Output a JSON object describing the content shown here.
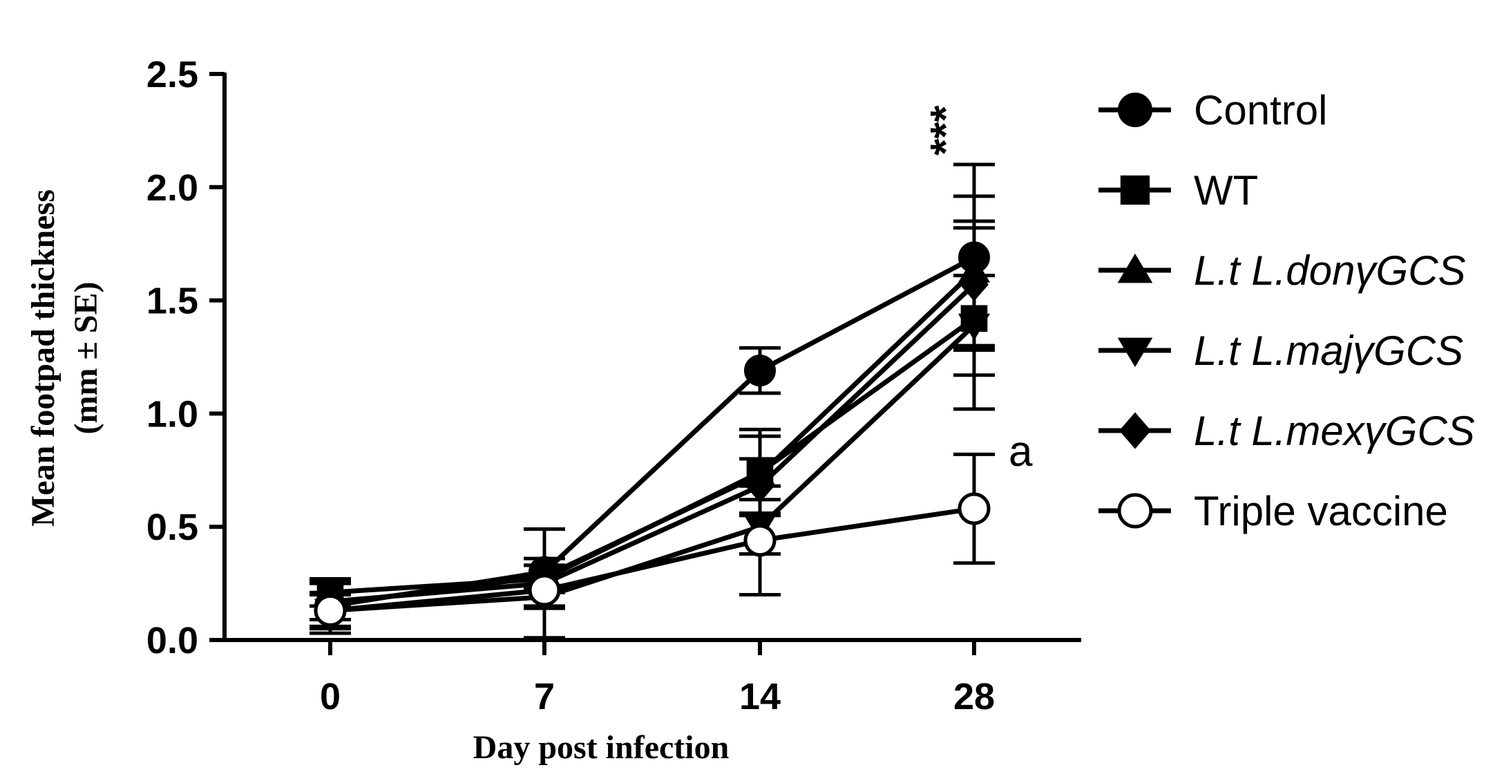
{
  "chart_data": {
    "type": "line",
    "xlabel": "Day post infection",
    "ylabel": "Mean footpad thickness",
    "ylabel_line2": "(mm ± SE)",
    "categories": [
      "0",
      "7",
      "14",
      "28"
    ],
    "ylim": [
      0,
      2.5
    ],
    "yticks": [
      "0.0",
      "0.5",
      "1.0",
      "1.5",
      "2.0",
      "2.5"
    ],
    "ytick_values": [
      0,
      0.5,
      1.0,
      1.5,
      2.0,
      2.5
    ],
    "grid": false,
    "legend_position": "right",
    "series": [
      {
        "name": "Control",
        "name_italic": false,
        "marker": "circle-filled",
        "values": [
          0.15,
          0.3,
          1.19,
          1.69
        ],
        "errors": [
          0.12,
          0.06,
          0.1,
          0.41
        ]
      },
      {
        "name": "WT",
        "name_italic": false,
        "marker": "square-filled",
        "values": [
          0.21,
          0.27,
          0.74,
          1.42
        ],
        "errors": [
          0.06,
          0.06,
          0.19,
          0.4
        ]
      },
      {
        "name": "L.t L.donγGCS",
        "name_italic": true,
        "marker": "triangle-up",
        "values": [
          0.16,
          0.28,
          0.73,
          1.63
        ],
        "errors": [
          0.1,
          0.05,
          0.17,
          0.33
        ]
      },
      {
        "name": "L.t L.majγGCS",
        "name_italic": true,
        "marker": "triangle-down",
        "values": [
          0.13,
          0.19,
          0.5,
          1.39
        ],
        "errors": [
          0.08,
          0.05,
          0.12,
          0.22
        ]
      },
      {
        "name": "L.t L.mexγGCS",
        "name_italic": true,
        "marker": "diamond",
        "values": [
          0.17,
          0.25,
          0.68,
          1.57
        ],
        "errors": [
          0.08,
          0.24,
          0.12,
          0.28
        ]
      },
      {
        "name": "Triple vaccine",
        "name_italic": false,
        "marker": "circle-open",
        "values": [
          0.13,
          0.22,
          0.44,
          0.58
        ],
        "errors": [
          0.07,
          0.07,
          0.24,
          0.24
        ]
      }
    ],
    "annotations": [
      {
        "text": "***",
        "x": "28",
        "y": 2.14,
        "style": "vertical"
      },
      {
        "text": "a",
        "x": "28",
        "y": 0.83,
        "style": "right"
      }
    ]
  }
}
